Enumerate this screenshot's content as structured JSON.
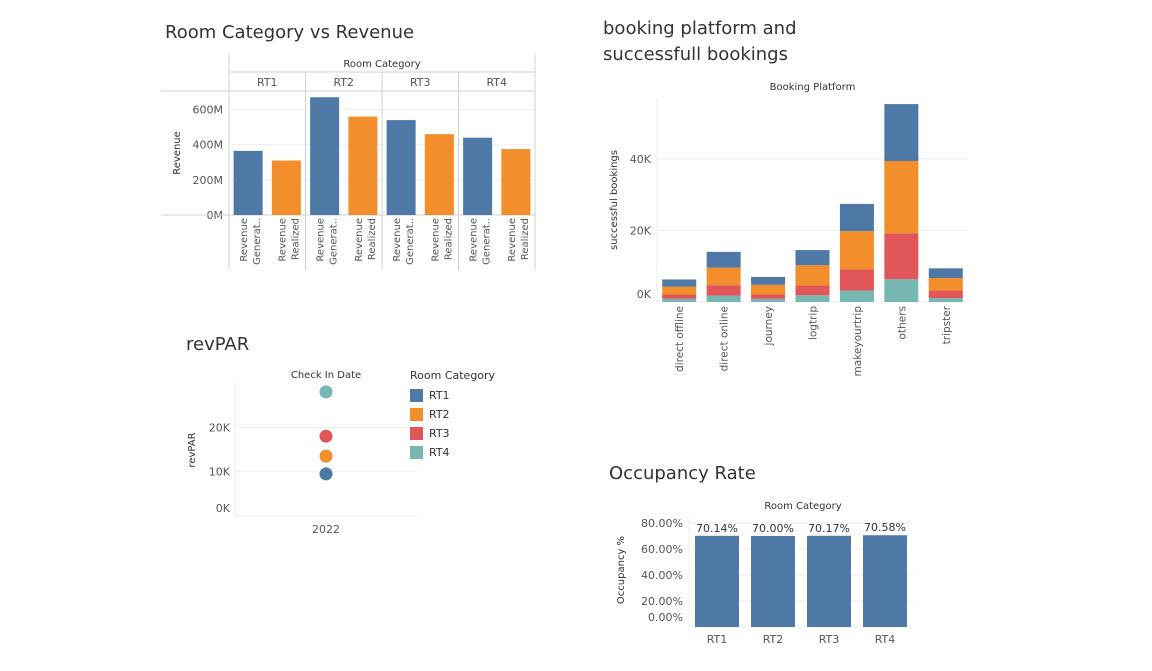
{
  "colors": {
    "RT1": "#4e79a7",
    "RT2": "#f28e2b",
    "RT3": "#e15759",
    "RT4": "#76b7b2",
    "text": "#333333",
    "grid": "#eeeeee"
  },
  "titles": {
    "revenue": "Room Category vs Revenue",
    "booking_line1": "booking platform and",
    "booking_line2": "successfull bookings",
    "revpar": "revPAR",
    "occupancy": "Occupancy Rate"
  },
  "chart_data": [
    {
      "id": "revenue",
      "type": "bar",
      "title": "Room Category vs Revenue",
      "column_header": "Room Category",
      "ylabel": "Revenue",
      "ylim": [
        0,
        700000000
      ],
      "yticks": [
        {
          "v": 0,
          "label": "0M"
        },
        {
          "v": 200000000,
          "label": "200M"
        },
        {
          "v": 400000000,
          "label": "400M"
        },
        {
          "v": 600000000,
          "label": "600M"
        }
      ],
      "measures": [
        {
          "line1": "Revenue",
          "line2": "Generat..",
          "color": "#4e79a7"
        },
        {
          "line1": "Revenue",
          "line2": "Realized",
          "color": "#f28e2b"
        }
      ],
      "categories": [
        "RT1",
        "RT2",
        "RT3",
        "RT4"
      ],
      "series": [
        {
          "name": "Revenue Generat..",
          "values": [
            365000000,
            670000000,
            540000000,
            440000000
          ]
        },
        {
          "name": "Revenue Realized",
          "values": [
            310000000,
            560000000,
            460000000,
            375000000
          ]
        }
      ]
    },
    {
      "id": "booking",
      "type": "bar",
      "stacked": true,
      "title": "booking platform and successfull bookings",
      "column_header": "Booking Platform",
      "ylabel": "successful bookings",
      "ylim": [
        0,
        57000
      ],
      "yticks": [
        {
          "v": 0,
          "label": "0K"
        },
        {
          "v": 20000,
          "label": "20K"
        },
        {
          "v": 40000,
          "label": "40K"
        }
      ],
      "categories": [
        "direct offline",
        "direct online",
        "journey",
        "logtrip",
        "makeyourtrip",
        "others",
        "tripster"
      ],
      "series": [
        {
          "name": "RT4",
          "color": "#76b7b2",
          "values": [
            900,
            1800,
            900,
            1900,
            3200,
            6400,
            1100
          ]
        },
        {
          "name": "RT3",
          "color": "#e15759",
          "values": [
            1200,
            2900,
            1200,
            2700,
            5900,
            12800,
            2100
          ]
        },
        {
          "name": "RT2",
          "color": "#f28e2b",
          "values": [
            2200,
            4900,
            2700,
            5700,
            10700,
            20200,
            3500
          ]
        },
        {
          "name": "RT1",
          "color": "#4e79a7",
          "values": [
            2000,
            4400,
            2200,
            4200,
            7600,
            15900,
            2700
          ]
        }
      ]
    },
    {
      "id": "revpar",
      "type": "scatter",
      "title": "revPAR",
      "column_header": "Check In Date",
      "ylabel": "revPAR",
      "ylim": [
        0,
        30000
      ],
      "yticks": [
        {
          "v": 0,
          "label": "0K"
        },
        {
          "v": 10000,
          "label": "10K"
        },
        {
          "v": 20000,
          "label": "20K"
        }
      ],
      "x": [
        "2022"
      ],
      "series": [
        {
          "name": "RT1",
          "color": "#4e79a7",
          "values": [
            9500
          ]
        },
        {
          "name": "RT2",
          "color": "#f28e2b",
          "values": [
            13500
          ]
        },
        {
          "name": "RT3",
          "color": "#e15759",
          "values": [
            18000
          ]
        },
        {
          "name": "RT4",
          "color": "#76b7b2",
          "values": [
            28000
          ]
        }
      ],
      "legend": {
        "title": "Room Category",
        "position": "right",
        "items": [
          "RT1",
          "RT2",
          "RT3",
          "RT4"
        ]
      }
    },
    {
      "id": "occupancy",
      "type": "bar",
      "title": "Occupancy Rate",
      "column_header": "Room Category",
      "ylabel": "Occupancy %",
      "ylim": [
        0,
        80
      ],
      "yticks": [
        {
          "v": 0,
          "label": "0.00%"
        },
        {
          "v": 20,
          "label": "20.00%"
        },
        {
          "v": 40,
          "label": "40.00%"
        },
        {
          "v": 60,
          "label": "60.00%"
        },
        {
          "v": 80,
          "label": "80.00%"
        }
      ],
      "categories": [
        "RT1",
        "RT2",
        "RT3",
        "RT4"
      ],
      "values": [
        70.14,
        70.0,
        70.17,
        70.58
      ],
      "data_labels": [
        "70.14%",
        "70.00%",
        "70.17%",
        "70.58%"
      ],
      "color": "#4e79a7"
    }
  ]
}
